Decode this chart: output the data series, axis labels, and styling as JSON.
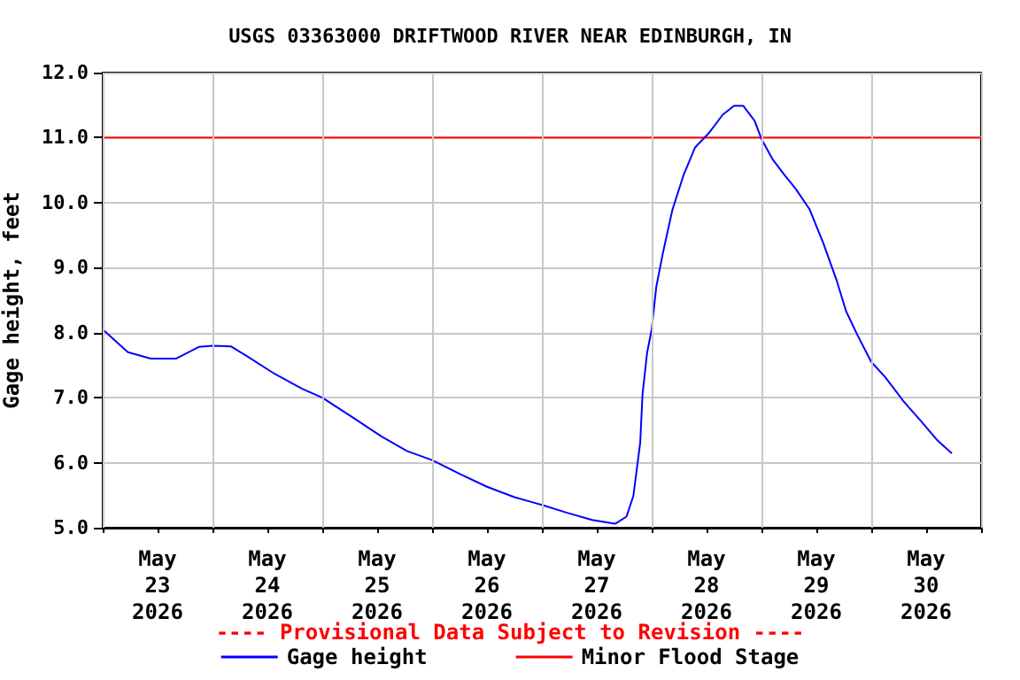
{
  "chart_data": {
    "type": "line",
    "title": "USGS 03363000 DRIFTWOOD RIVER NEAR EDINBURGH, IN",
    "ylabel": "Gage height, feet",
    "annotations": [
      "---- Provisional Data Subject to Revision ----"
    ],
    "series": [
      {
        "name": "Gage height",
        "color": "#0000ff",
        "x": [
          "2026-05-23T00:00",
          "2026-05-23T05:30",
          "2026-05-23T10:30",
          "2026-05-23T16:00",
          "2026-05-23T21:00",
          "2026-05-24T00:00",
          "2026-05-24T04:00",
          "2026-05-24T07:30",
          "2026-05-24T13:30",
          "2026-05-24T19:30",
          "2026-05-25T00:00",
          "2026-05-25T07:00",
          "2026-05-25T13:00",
          "2026-05-25T18:30",
          "2026-05-26T00:00",
          "2026-05-26T06:00",
          "2026-05-26T12:00",
          "2026-05-26T18:00",
          "2026-05-26T21:30",
          "2026-05-27T00:00",
          "2026-05-27T05:30",
          "2026-05-27T11:00",
          "2026-05-27T16:00",
          "2026-05-27T18:30",
          "2026-05-27T20:00",
          "2026-05-27T21:30",
          "2026-05-27T22:00",
          "2026-05-27T23:00",
          "2026-05-28T00:00",
          "2026-05-28T01:00",
          "2026-05-28T02:30",
          "2026-05-28T04:30",
          "2026-05-28T07:00",
          "2026-05-28T09:30",
          "2026-05-28T12:30",
          "2026-05-28T15:30",
          "2026-05-28T18:00",
          "2026-05-28T20:00",
          "2026-05-28T22:30",
          "2026-05-29T00:00",
          "2026-05-29T02:30",
          "2026-05-29T05:00",
          "2026-05-29T07:30",
          "2026-05-29T10:30",
          "2026-05-29T13:30",
          "2026-05-29T16:30",
          "2026-05-29T18:30",
          "2026-05-29T21:00",
          "2026-05-30T00:00",
          "2026-05-30T03:00",
          "2026-05-30T07:00",
          "2026-05-30T11:00",
          "2026-05-30T14:30",
          "2026-05-30T17:30"
        ],
        "values": [
          8.05,
          7.7,
          7.6,
          7.6,
          7.78,
          7.8,
          7.79,
          7.64,
          7.37,
          7.14,
          7.0,
          6.68,
          6.4,
          6.18,
          6.04,
          5.83,
          5.63,
          5.47,
          5.4,
          5.35,
          5.23,
          5.12,
          5.06,
          5.17,
          5.49,
          6.31,
          7.05,
          7.69,
          8.05,
          8.7,
          9.24,
          9.88,
          10.43,
          10.85,
          11.07,
          11.35,
          11.49,
          11.49,
          11.26,
          10.98,
          10.66,
          10.43,
          10.21,
          9.9,
          9.38,
          8.79,
          8.33,
          7.96,
          7.55,
          7.32,
          6.95,
          6.63,
          6.34,
          6.15
        ]
      }
    ],
    "ref_lines": [
      {
        "axis": "y",
        "value": 11.0,
        "label": "Minor Flood Stage",
        "color": "#ff0000"
      }
    ],
    "xlim": [
      "2026-05-23T00:00",
      "2026-05-31T00:00"
    ],
    "xticks": [
      {
        "value": "2026-05-23T00:00",
        "label": null
      },
      {
        "value": "2026-05-23T12:00",
        "label": "May\n23\n2026"
      },
      {
        "value": "2026-05-24T00:00",
        "label": null
      },
      {
        "value": "2026-05-24T12:00",
        "label": "May\n24\n2026"
      },
      {
        "value": "2026-05-25T00:00",
        "label": null
      },
      {
        "value": "2026-05-25T12:00",
        "label": "May\n25\n2026"
      },
      {
        "value": "2026-05-26T00:00",
        "label": null
      },
      {
        "value": "2026-05-26T12:00",
        "label": "May\n26\n2026"
      },
      {
        "value": "2026-05-27T00:00",
        "label": null
      },
      {
        "value": "2026-05-27T12:00",
        "label": "May\n27\n2026"
      },
      {
        "value": "2026-05-28T00:00",
        "label": null
      },
      {
        "value": "2026-05-28T12:00",
        "label": "May\n28\n2026"
      },
      {
        "value": "2026-05-29T00:00",
        "label": null
      },
      {
        "value": "2026-05-29T12:00",
        "label": "May\n29\n2026"
      },
      {
        "value": "2026-05-30T00:00",
        "label": null
      },
      {
        "value": "2026-05-30T12:00",
        "label": "May\n30\n2026"
      },
      {
        "value": "2026-05-31T00:00",
        "label": null
      }
    ],
    "ylim": [
      5.0,
      12.0
    ],
    "yticks": [
      {
        "value": 5,
        "label": "5.0"
      },
      {
        "value": 6,
        "label": "6.0"
      },
      {
        "value": 7,
        "label": "7.0"
      },
      {
        "value": 8,
        "label": "8.0"
      },
      {
        "value": 9,
        "label": "9.0"
      },
      {
        "value": 10,
        "label": "10.0"
      },
      {
        "value": 11,
        "label": "11.0"
      },
      {
        "value": 12,
        "label": "12.0"
      }
    ],
    "grid": true,
    "legend": "bottom",
    "marker": "none",
    "line_style": "solid"
  }
}
